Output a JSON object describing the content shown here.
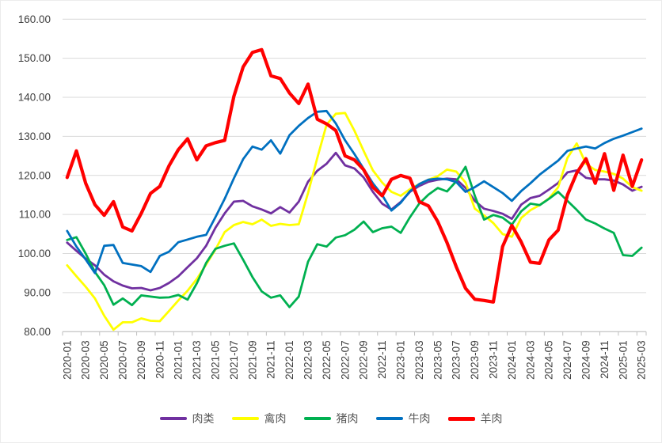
{
  "chart_data": {
    "type": "line",
    "title": "",
    "xlabel": "",
    "ylabel": "",
    "ylim": [
      80,
      160
    ],
    "y_tick_step": 10,
    "y_tick_labels": [
      "160.00",
      "150.00",
      "140.00",
      "130.00",
      "120.00",
      "110.00",
      "100.00",
      "90.00",
      "80.00"
    ],
    "grid": "horizontal",
    "legend_position": "bottom",
    "x": [
      "2020-01",
      "2020-02",
      "2020-03",
      "2020-04",
      "2020-05",
      "2020-06",
      "2020-07",
      "2020-08",
      "2020-09",
      "2020-10",
      "2020-11",
      "2020-12",
      "2021-01",
      "2021-02",
      "2021-03",
      "2021-04",
      "2021-05",
      "2021-06",
      "2021-07",
      "2021-08",
      "2021-09",
      "2021-10",
      "2021-11",
      "2021-12",
      "2022-01",
      "2022-02",
      "2022-03",
      "2022-04",
      "2022-05",
      "2022-06",
      "2022-07",
      "2022-08",
      "2022-09",
      "2022-10",
      "2022-11",
      "2022-12",
      "2023-01",
      "2023-02",
      "2023-03",
      "2023-04",
      "2023-05",
      "2023-06",
      "2023-07",
      "2023-08",
      "2023-09",
      "2023-10",
      "2023-11",
      "2023-12",
      "2024-01",
      "2024-02",
      "2024-03",
      "2024-04",
      "2024-05",
      "2024-06",
      "2024-07",
      "2024-08",
      "2024-09",
      "2024-10",
      "2024-11",
      "2024-12",
      "2025-01",
      "2025-02",
      "2025-03"
    ],
    "x_tick_labels": [
      "2020-01",
      "2020-03",
      "2020-05",
      "2020-07",
      "2020-09",
      "2020-11",
      "2021-01",
      "2021-03",
      "2021-05",
      "2021-07",
      "2021-09",
      "2021-11",
      "2022-01",
      "2022-03",
      "2022-05",
      "2022-07",
      "2022-09",
      "2022-11",
      "2023-01",
      "2023-03",
      "2023-05",
      "2023-07",
      "2023-09",
      "2023-11",
      "2024-01",
      "2024-03",
      "2024-05",
      "2024-07",
      "2024-09",
      "2024-11",
      "2025-01",
      "2025-03"
    ],
    "series": [
      {
        "name": "肉类",
        "id": "meat",
        "color": "#7030A0",
        "width": 2.8,
        "values": [
          102.8,
          100.7,
          98.7,
          97.0,
          94.6,
          92.9,
          91.8,
          91.1,
          91.2,
          90.6,
          91.2,
          92.5,
          94.2,
          96.5,
          98.8,
          102.0,
          106.6,
          110.3,
          113.3,
          113.5,
          112.1,
          111.3,
          110.3,
          111.9,
          110.5,
          113.3,
          118.4,
          121.2,
          123.0,
          125.8,
          122.6,
          121.8,
          119.5,
          115.8,
          112.8,
          111.3,
          113.2,
          115.8,
          117.3,
          118.4,
          118.9,
          119.2,
          119.0,
          116.8,
          113.5,
          111.5,
          110.9,
          110.2,
          108.9,
          112.5,
          114.2,
          114.8,
          116.4,
          118.1,
          120.8,
          121.3,
          119.4,
          119.0,
          119.0,
          118.7,
          117.7,
          116.1,
          117.1
        ]
      },
      {
        "name": "禽肉",
        "id": "poultry",
        "color": "#FFFF00",
        "width": 2.8,
        "values": [
          97.0,
          94.2,
          91.5,
          88.5,
          84.1,
          80.5,
          82.4,
          82.4,
          83.4,
          82.8,
          82.7,
          85.3,
          88.0,
          90.5,
          93.5,
          97.2,
          101.0,
          105.5,
          107.3,
          108.1,
          107.5,
          108.7,
          107.1,
          107.6,
          107.3,
          107.5,
          115.5,
          124.5,
          133.0,
          135.8,
          136.0,
          131.5,
          126.3,
          121.3,
          118.2,
          115.8,
          114.8,
          116.5,
          117.8,
          118.9,
          119.8,
          121.5,
          121.0,
          118.2,
          111.5,
          109.8,
          107.8,
          105.0,
          104.3,
          109.1,
          111.1,
          112.4,
          114.1,
          117.0,
          124.5,
          128.2,
          123.0,
          121.4,
          121.0,
          120.4,
          119.2,
          117.0,
          116.1
        ]
      },
      {
        "name": "猪肉",
        "id": "pork",
        "color": "#00B050",
        "width": 2.8,
        "values": [
          103.5,
          104.2,
          100.0,
          95.3,
          91.9,
          86.9,
          88.5,
          86.8,
          89.3,
          89.0,
          88.7,
          88.8,
          89.4,
          88.2,
          92.4,
          97.6,
          101.2,
          102.0,
          102.6,
          98.4,
          94.0,
          90.3,
          88.7,
          89.3,
          86.3,
          89.0,
          97.9,
          102.4,
          101.8,
          104.1,
          104.7,
          106.1,
          108.2,
          105.5,
          106.5,
          106.9,
          105.3,
          109.3,
          112.8,
          115.1,
          116.8,
          115.9,
          118.5,
          122.2,
          114.8,
          108.7,
          109.9,
          109.2,
          107.4,
          110.8,
          112.8,
          112.4,
          114.0,
          115.8,
          113.5,
          111.2,
          108.7,
          107.7,
          106.4,
          105.3,
          99.6,
          99.4,
          101.5
        ]
      },
      {
        "name": "牛肉",
        "id": "beef",
        "color": "#0070C0",
        "width": 2.8,
        "values": [
          105.8,
          101.8,
          98.5,
          95.0,
          102.0,
          102.2,
          97.6,
          97.2,
          96.8,
          95.3,
          99.4,
          100.5,
          102.9,
          103.6,
          104.3,
          104.8,
          109.3,
          114.0,
          119.3,
          124.2,
          127.4,
          126.6,
          129.0,
          125.6,
          130.3,
          132.7,
          134.7,
          136.3,
          136.5,
          133.3,
          129.0,
          125.5,
          121.7,
          118.0,
          115.0,
          111.0,
          113.0,
          116.0,
          117.8,
          118.9,
          119.2,
          119.0,
          118.3,
          115.8,
          117.0,
          118.5,
          117.0,
          115.5,
          113.5,
          116.0,
          118.0,
          120.2,
          122.0,
          123.8,
          126.3,
          126.9,
          127.4,
          126.9,
          128.3,
          129.4,
          130.2,
          131.1,
          132.0
        ]
      },
      {
        "name": "羊肉",
        "id": "mutton",
        "color": "#FF0000",
        "width": 4.2,
        "values": [
          119.5,
          126.3,
          118.0,
          112.5,
          109.8,
          113.3,
          106.8,
          105.8,
          110.3,
          115.4,
          117.2,
          122.5,
          126.6,
          129.4,
          124.0,
          127.6,
          128.4,
          129.0,
          140.3,
          147.8,
          151.5,
          152.2,
          145.5,
          144.8,
          141.1,
          138.4,
          143.4,
          134.4,
          133.2,
          131.5,
          125.0,
          124.0,
          121.5,
          117.0,
          114.8,
          119.0,
          120.0,
          119.3,
          113.3,
          112.2,
          108.2,
          102.8,
          96.6,
          91.1,
          88.3,
          88.0,
          87.6,
          101.8,
          107.2,
          103.0,
          97.8,
          97.5,
          103.5,
          106.0,
          115.0,
          120.6,
          124.3,
          118.0,
          125.6,
          116.2,
          125.2,
          117.2,
          124.0
        ]
      }
    ],
    "colors": {
      "gridline": "#D9D9D9",
      "axis": "#BFBFBF",
      "tick_label": "#404040",
      "legend_label": "#595959"
    }
  }
}
